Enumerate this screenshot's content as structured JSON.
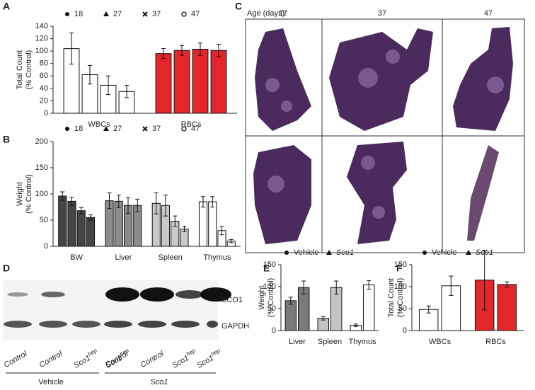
{
  "chart_data": [
    {
      "type": "bar",
      "panel": "A",
      "y_label": [
        "Total Count",
        "(% Control)"
      ],
      "categories": [
        "WBCs",
        "RBCs"
      ],
      "category_colors": [
        "#ffffff",
        "#e3262b"
      ],
      "series": [
        {
          "name": "18",
          "marker": "circle",
          "values": [
            104,
            96
          ],
          "errors": [
            25,
            8
          ]
        },
        {
          "name": "27",
          "marker": "triangle",
          "values": [
            62,
            101
          ],
          "errors": [
            15,
            8
          ]
        },
        {
          "name": "37",
          "marker": "cross",
          "values": [
            45,
            103
          ],
          "errors": [
            15,
            10
          ]
        },
        {
          "name": "47",
          "marker": "open-circle",
          "values": [
            35,
            101
          ],
          "errors": [
            10,
            10
          ]
        }
      ],
      "ylim": [
        0,
        140
      ],
      "yticks": [
        0,
        20,
        40,
        60,
        80,
        100,
        120,
        140
      ]
    },
    {
      "type": "bar",
      "panel": "B",
      "y_label": [
        "Weight",
        "(% Control)"
      ],
      "categories": [
        "BW",
        "Liver",
        "Spleen",
        "Thymus"
      ],
      "category_colors": [
        "#454545",
        "#8c8c8c",
        "#c9c9c9",
        "#ffffff"
      ],
      "series": [
        {
          "name": "18",
          "marker": "circle",
          "values": [
            96,
            87,
            82,
            85
          ],
          "errors": [
            8,
            15,
            20,
            10
          ]
        },
        {
          "name": "27",
          "marker": "triangle",
          "values": [
            86,
            86,
            78,
            85
          ],
          "errors": [
            8,
            12,
            20,
            10
          ]
        },
        {
          "name": "37",
          "marker": "cross",
          "values": [
            68,
            78,
            48,
            30
          ],
          "errors": [
            6,
            15,
            10,
            8
          ]
        },
        {
          "name": "47",
          "marker": "open-circle",
          "values": [
            55,
            78,
            33,
            10
          ],
          "errors": [
            5,
            12,
            5,
            3
          ]
        }
      ],
      "ylim": [
        0,
        200
      ],
      "yticks": [
        0,
        50,
        100,
        150,
        200
      ]
    },
    {
      "type": "bar",
      "panel": "E",
      "y_label": [
        "Weight",
        "(% Control)"
      ],
      "categories": [
        "Liver",
        "Spleen",
        "Thymus"
      ],
      "category_colors": [
        "#7a7a7a",
        "#c4c4c4",
        "#ffffff"
      ],
      "series": [
        {
          "name": "Vehicle",
          "marker": "circle",
          "values": [
            68,
            28,
            12
          ],
          "errors": [
            8,
            4,
            3
          ]
        },
        {
          "name": "Sco1",
          "marker": "triangle",
          "values": [
            98,
            98,
            104
          ],
          "errors": [
            15,
            15,
            10
          ]
        }
      ],
      "ylim": [
        0,
        150
      ],
      "yticks": [
        0,
        50,
        100,
        150
      ]
    },
    {
      "type": "bar",
      "panel": "F",
      "y_label": [
        "Total Count",
        "(% Control)"
      ],
      "categories": [
        "WBCs",
        "RBCs"
      ],
      "category_colors": [
        "#ffffff",
        "#e3262b"
      ],
      "series": [
        {
          "name": "Vehicle",
          "marker": "circle",
          "values": [
            48,
            115
          ],
          "errors": [
            8,
            68
          ]
        },
        {
          "name": "Sco1",
          "marker": "triangle",
          "values": [
            102,
            105
          ],
          "errors": [
            22,
            6
          ]
        }
      ],
      "ylim": [
        0,
        150
      ],
      "yticks": [
        0,
        50,
        100,
        150
      ]
    }
  ],
  "panel_c": {
    "letter": "C",
    "age_label": "Age (days):",
    "ages": [
      "27",
      "37",
      "47"
    ]
  },
  "panel_d": {
    "letter": "D",
    "bands": [
      "SCO1",
      "GAPDH"
    ],
    "lanes": [
      {
        "text": "Control"
      },
      {
        "text": "Control"
      },
      {
        "text": "Sco1",
        "sup": "hep"
      },
      {
        "text": "Sco1",
        "sup": "hep"
      },
      {
        "text": "Control"
      },
      {
        "text": "Control"
      },
      {
        "text": "Sco1",
        "sup": "hep"
      },
      {
        "text": "Sco1",
        "sup": "hep"
      }
    ],
    "groups": [
      "Vehicle",
      "Sco1"
    ]
  }
}
